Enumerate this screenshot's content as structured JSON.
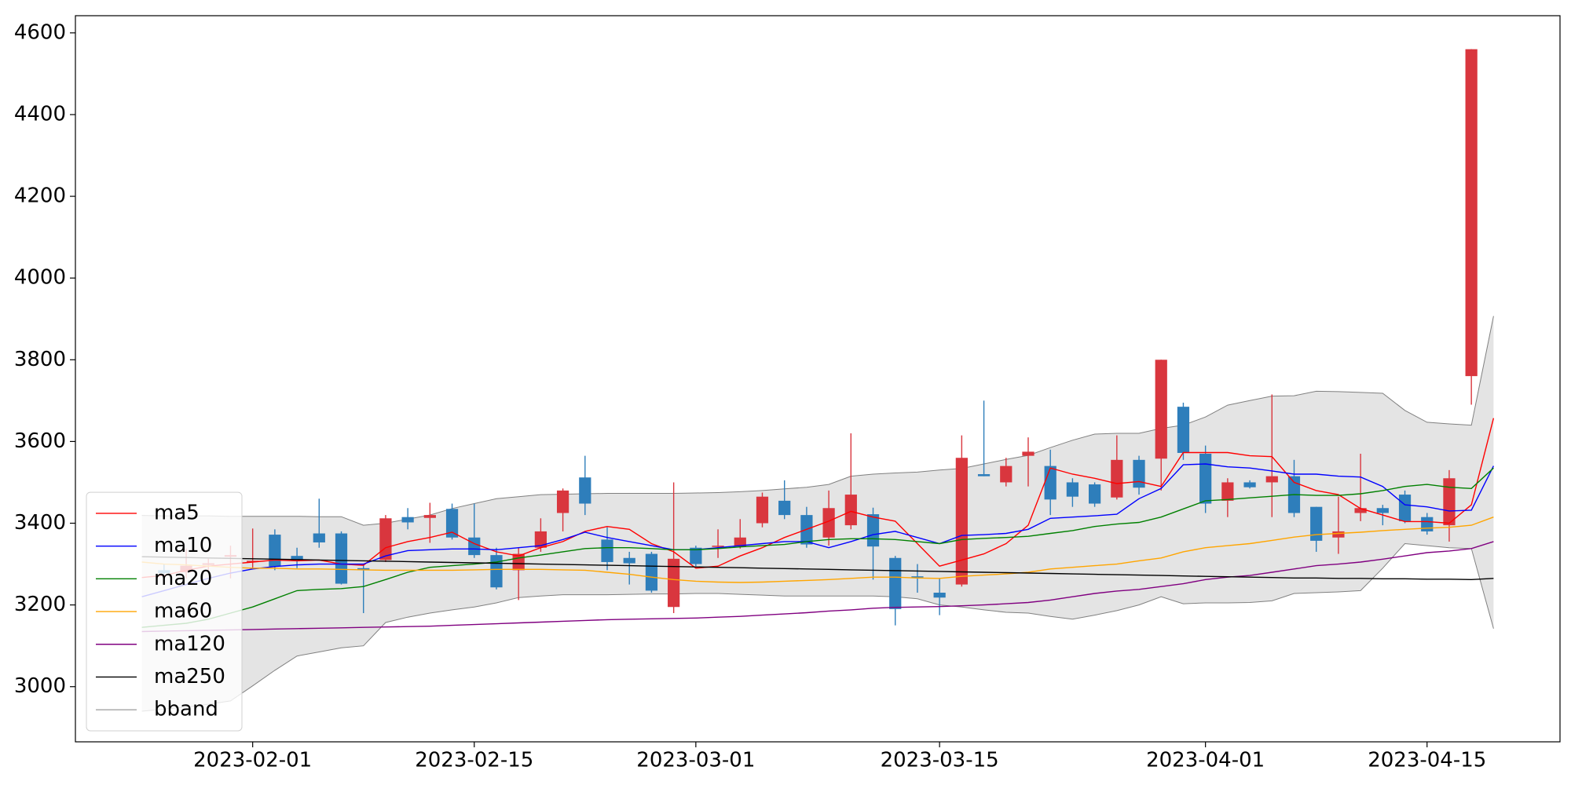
{
  "chart_data": {
    "type": "candlestick",
    "categories": [
      null,
      null,
      null,
      null,
      null,
      "2023-02-01",
      null,
      null,
      null,
      null,
      null,
      null,
      null,
      null,
      null,
      "2023-02-15",
      null,
      null,
      null,
      null,
      null,
      null,
      null,
      null,
      null,
      "2023-03-01",
      null,
      null,
      null,
      null,
      null,
      null,
      null,
      null,
      null,
      null,
      "2023-03-15",
      null,
      null,
      null,
      null,
      null,
      null,
      null,
      null,
      null,
      null,
      null,
      "2023-04-01",
      null,
      null,
      null,
      null,
      null,
      null,
      null,
      null,
      null,
      "2023-04-15",
      null,
      null,
      null
    ],
    "open": [
      null,
      3285,
      3280,
      3298,
      3318,
      3305,
      3372,
      3320,
      3375,
      3375,
      3290,
      3310,
      3415,
      3413,
      3435,
      3365,
      3322,
      3285,
      3340,
      3425,
      3512,
      3360,
      3315,
      3325,
      3195,
      3340,
      3342,
      3343,
      3400,
      3455,
      3420,
      3365,
      3395,
      3422,
      3315,
      3270,
      3230,
      3250,
      3520,
      3500,
      3565,
      3540,
      3500,
      3495,
      3463,
      3555,
      3558,
      3685,
      3570,
      3455,
      3500,
      3500,
      3515,
      3440,
      3365,
      3425,
      3437,
      3470,
      3415,
      3395,
      3760,
      null
    ],
    "high": [
      null,
      3300,
      3338,
      3313,
      3345,
      3387,
      3385,
      3340,
      3460,
      3380,
      3300,
      3420,
      3437,
      3450,
      3448,
      3448,
      3340,
      3340,
      3412,
      3485,
      3565,
      3390,
      3330,
      3330,
      3500,
      3345,
      3385,
      3410,
      3475,
      3505,
      3440,
      3480,
      3620,
      3438,
      3320,
      3300,
      3265,
      3615,
      3700,
      3560,
      3610,
      3580,
      3510,
      3500,
      3615,
      3565,
      3800,
      3695,
      3590,
      3510,
      3505,
      3715,
      3555,
      3440,
      3465,
      3570,
      3445,
      3480,
      3425,
      3530,
      4560,
      null
    ],
    "low": [
      null,
      3270,
      3265,
      3284,
      3265,
      3290,
      3285,
      3290,
      3340,
      3250,
      3180,
      3305,
      3385,
      3352,
      3360,
      3315,
      3238,
      3212,
      3330,
      3380,
      3420,
      3285,
      3250,
      3230,
      3180,
      3295,
      3315,
      3338,
      3390,
      3410,
      3340,
      3345,
      3385,
      3262,
      3150,
      3230,
      3175,
      3245,
      3515,
      3490,
      3490,
      3420,
      3440,
      3440,
      3458,
      3470,
      3480,
      3555,
      3425,
      3415,
      3485,
      3415,
      3415,
      3330,
      3325,
      3405,
      3395,
      3400,
      3372,
      3355,
      3690,
      null
    ],
    "close": [
      null,
      3278,
      3296,
      3302,
      3322,
      3308,
      3294,
      3308,
      3353,
      3252,
      3285,
      3412,
      3402,
      3420,
      3365,
      3322,
      3243,
      3325,
      3380,
      3480,
      3448,
      3305,
      3302,
      3235,
      3313,
      3300,
      3345,
      3365,
      3465,
      3420,
      3348,
      3437,
      3470,
      3343,
      3190,
      3268,
      3218,
      3560,
      3515,
      3540,
      3575,
      3458,
      3465,
      3448,
      3555,
      3487,
      3800,
      3572,
      3448,
      3500,
      3488,
      3515,
      3425,
      3357,
      3380,
      3437,
      3425,
      3405,
      3380,
      3510,
      4560,
      null
    ],
    "up_color": "#d9363e",
    "down_color": "#2e7ebb",
    "series": [
      {
        "name": "ma5",
        "color": "#ff0000",
        "values": [
          3267,
          3272,
          3285,
          3295,
          3300,
          3305,
          3310,
          3308,
          3310,
          3300,
          3297,
          3340,
          3355,
          3365,
          3378,
          3350,
          3330,
          3320,
          3340,
          3355,
          3380,
          3392,
          3385,
          3350,
          3330,
          3290,
          3295,
          3320,
          3340,
          3365,
          3385,
          3405,
          3429,
          3415,
          3405,
          3350,
          3295,
          3310,
          3325,
          3350,
          3395,
          3535,
          3520,
          3510,
          3497,
          3502,
          3490,
          3573,
          3573,
          3573,
          3565,
          3563,
          3500,
          3480,
          3470,
          3436,
          3420,
          3404,
          3404,
          3400,
          3445,
          3657
        ]
      },
      {
        "name": "ma10",
        "color": "#0000ff",
        "values": [
          3220,
          3235,
          3250,
          3265,
          3278,
          3288,
          3294,
          3298,
          3300,
          3300,
          3300,
          3320,
          3333,
          3335,
          3337,
          3337,
          3335,
          3340,
          3345,
          3360,
          3378,
          3365,
          3355,
          3345,
          3335,
          3335,
          3340,
          3345,
          3350,
          3355,
          3355,
          3340,
          3355,
          3372,
          3380,
          3365,
          3350,
          3370,
          3372,
          3375,
          3385,
          3412,
          3415,
          3418,
          3422,
          3460,
          3485,
          3543,
          3545,
          3538,
          3535,
          3528,
          3520,
          3520,
          3515,
          3513,
          3490,
          3445,
          3440,
          3430,
          3432,
          3540
        ]
      },
      {
        "name": "ma20",
        "color": "#008000",
        "values": [
          3145,
          3150,
          3155,
          3165,
          3180,
          3195,
          3215,
          3235,
          3238,
          3240,
          3245,
          3262,
          3280,
          3292,
          3296,
          3300,
          3305,
          3315,
          3322,
          3330,
          3338,
          3340,
          3340,
          3338,
          3335,
          3335,
          3338,
          3342,
          3345,
          3348,
          3355,
          3360,
          3362,
          3362,
          3360,
          3355,
          3350,
          3360,
          3363,
          3365,
          3368,
          3375,
          3382,
          3392,
          3398,
          3402,
          3415,
          3435,
          3455,
          3458,
          3462,
          3466,
          3470,
          3468,
          3468,
          3472,
          3480,
          3490,
          3495,
          3488,
          3485,
          3535
        ]
      },
      {
        "name": "ma60",
        "color": "#ffa500",
        "values": [
          3305,
          3300,
          3298,
          3295,
          3292,
          3290,
          3290,
          3288,
          3288,
          3287,
          3286,
          3285,
          3285,
          3285,
          3285,
          3286,
          3287,
          3287,
          3287,
          3286,
          3285,
          3280,
          3275,
          3268,
          3262,
          3258,
          3256,
          3255,
          3256,
          3258,
          3260,
          3262,
          3265,
          3268,
          3268,
          3266,
          3265,
          3270,
          3273,
          3276,
          3280,
          3288,
          3292,
          3296,
          3300,
          3308,
          3315,
          3330,
          3340,
          3345,
          3350,
          3358,
          3366,
          3372,
          3375,
          3378,
          3382,
          3385,
          3388,
          3390,
          3395,
          3415
        ]
      },
      {
        "name": "ma120",
        "color": "#800080",
        "values": [
          3135,
          3136,
          3137,
          3138,
          3139,
          3140,
          3141,
          3142,
          3143,
          3144,
          3145,
          3146,
          3147,
          3148,
          3150,
          3152,
          3154,
          3156,
          3158,
          3160,
          3162,
          3164,
          3165,
          3166,
          3167,
          3168,
          3170,
          3172,
          3175,
          3178,
          3181,
          3185,
          3188,
          3192,
          3194,
          3195,
          3196,
          3198,
          3200,
          3203,
          3206,
          3212,
          3220,
          3228,
          3234,
          3238,
          3245,
          3252,
          3262,
          3268,
          3272,
          3280,
          3288,
          3296,
          3300,
          3305,
          3312,
          3320,
          3328,
          3332,
          3338,
          3355
        ]
      },
      {
        "name": "ma250",
        "color": "#000000",
        "values": [
          3318,
          3317,
          3316,
          3315,
          3314,
          3313,
          3312,
          3311,
          3310,
          3309,
          3308,
          3307,
          3306,
          3305,
          3304,
          3303,
          3302,
          3301,
          3300,
          3299,
          3298,
          3297,
          3296,
          3295,
          3294,
          3293,
          3292,
          3291,
          3290,
          3289,
          3288,
          3287,
          3286,
          3285,
          3284,
          3283,
          3282,
          3281,
          3280,
          3279,
          3278,
          3277,
          3276,
          3275,
          3274,
          3273,
          3272,
          3271,
          3270,
          3269,
          3268,
          3267,
          3266,
          3266,
          3265,
          3265,
          3264,
          3264,
          3263,
          3263,
          3262,
          3265
        ]
      },
      {
        "name": "bband",
        "color": "#808080",
        "fill": "#e4e4e4",
        "upper": [
          3419,
          3418,
          3418,
          3418,
          3417,
          3417,
          3417,
          3417,
          3416,
          3416,
          3395,
          3400,
          3410,
          3420,
          3436,
          3448,
          3460,
          3465,
          3470,
          3471,
          3472,
          3473,
          3473,
          3473,
          3473,
          3474,
          3475,
          3477,
          3480,
          3484,
          3488,
          3495,
          3515,
          3520,
          3523,
          3525,
          3530,
          3534,
          3545,
          3556,
          3566,
          3585,
          3603,
          3618,
          3620,
          3620,
          3632,
          3640,
          3660,
          3689,
          3700,
          3711,
          3712,
          3723,
          3722,
          3720,
          3718,
          3676,
          3647,
          3643,
          3640,
          3907
        ],
        "lower": [
          2940,
          2945,
          2950,
          2957,
          2965,
          3002,
          3040,
          3075,
          3085,
          3095,
          3100,
          3157,
          3170,
          3180,
          3188,
          3195,
          3205,
          3218,
          3222,
          3225,
          3225,
          3225,
          3226,
          3227,
          3227,
          3228,
          3228,
          3226,
          3224,
          3222,
          3222,
          3222,
          3222,
          3222,
          3220,
          3215,
          3200,
          3195,
          3188,
          3182,
          3180,
          3172,
          3165,
          3175,
          3186,
          3200,
          3220,
          3203,
          3205,
          3205,
          3206,
          3210,
          3228,
          3230,
          3232,
          3235,
          3290,
          3350,
          3345,
          3340,
          3338,
          3142
        ]
      }
    ],
    "ylim": [
      2865,
      4642
    ],
    "yticks": [
      3000,
      3200,
      3400,
      3600,
      3800,
      4000,
      4200,
      4400,
      4600
    ],
    "legend": "lower left"
  }
}
